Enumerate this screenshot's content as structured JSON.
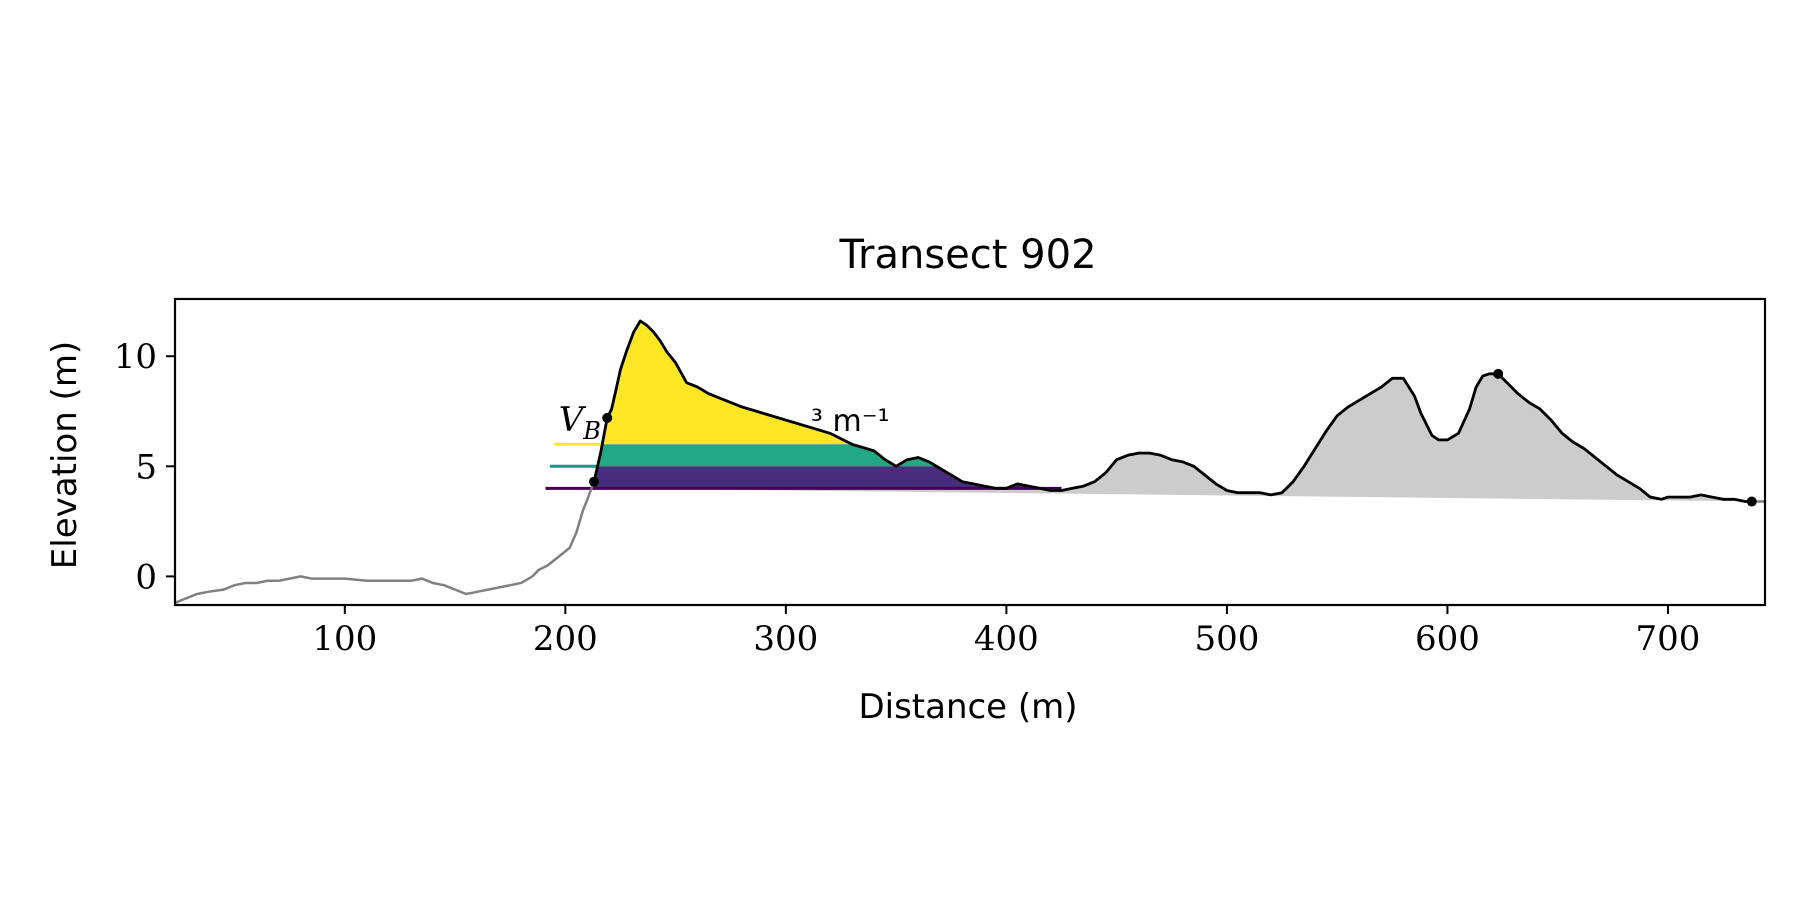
{
  "chart_data": {
    "type": "area",
    "title": "Transect 902",
    "xlabel": "Distance (m)",
    "ylabel": "Elevation (m)",
    "xlim": [
      23,
      744
    ],
    "ylim": [
      -1.3,
      12.6
    ],
    "xticks": [
      100,
      200,
      300,
      400,
      500,
      600,
      700
    ],
    "yticks": [
      0,
      5,
      10
    ],
    "grid": false,
    "annotation": {
      "text_main": "V",
      "text_sub": "B",
      "text_units": "³ m⁻¹",
      "x": 197,
      "y": 6.6
    },
    "colors": {
      "profile_full": "#808080",
      "profile_dune": "#000000",
      "fill_grey": "#cccccc",
      "band_top": "#fde725",
      "band_mid": "#21918c",
      "band_low": "#440154",
      "band_low_fill": "#472d7b",
      "band_mid_fill": "#22a884"
    },
    "levels": [
      {
        "name": "low",
        "elevation": 4.0,
        "line_start": 191,
        "fill_start": 213,
        "fill_end": 425
      },
      {
        "name": "mid",
        "elevation": 5.0,
        "line_start": 193,
        "fill_start": 214.5,
        "fill_end": 372
      },
      {
        "name": "top",
        "elevation": 6.0,
        "line_start": 195,
        "fill_start": 216,
        "fill_end": 345
      }
    ],
    "baseline": {
      "x": [
        213,
        744
      ],
      "y": [
        4.0,
        3.4
      ]
    },
    "markers": [
      {
        "x": 213,
        "y": 4.3
      },
      {
        "x": 219,
        "y": 7.2
      },
      {
        "x": 623,
        "y": 9.2
      },
      {
        "x": 738,
        "y": 3.4
      }
    ],
    "profile": {
      "x": [
        23,
        28,
        33,
        38,
        45,
        50,
        55,
        60,
        65,
        70,
        75,
        80,
        85,
        90,
        95,
        100,
        110,
        120,
        130,
        135,
        140,
        145,
        150,
        155,
        160,
        165,
        170,
        175,
        180,
        185,
        188,
        192,
        197,
        202,
        205,
        208,
        210,
        213,
        216,
        219,
        221,
        223,
        225,
        228,
        231,
        234,
        237,
        240,
        243,
        246,
        250,
        255,
        260,
        265,
        270,
        280,
        290,
        300,
        310,
        320,
        330,
        340,
        345,
        350,
        355,
        360,
        365,
        370,
        375,
        380,
        385,
        390,
        395,
        400,
        405,
        410,
        415,
        420,
        425,
        430,
        435,
        440,
        445,
        450,
        455,
        460,
        465,
        470,
        475,
        480,
        485,
        490,
        495,
        500,
        505,
        510,
        515,
        520,
        525,
        530,
        535,
        540,
        545,
        550,
        555,
        560,
        565,
        570,
        575,
        580,
        585,
        588,
        590,
        593,
        596,
        600,
        605,
        610,
        613,
        616,
        619,
        623,
        627,
        632,
        637,
        642,
        647,
        652,
        657,
        662,
        667,
        672,
        677,
        682,
        687,
        692,
        697,
        700,
        705,
        710,
        715,
        720,
        725,
        730,
        735,
        738,
        744
      ],
      "y": [
        -1.2,
        -1.0,
        -0.8,
        -0.7,
        -0.6,
        -0.4,
        -0.3,
        -0.3,
        -0.2,
        -0.2,
        -0.1,
        0.0,
        -0.1,
        -0.1,
        -0.1,
        -0.1,
        -0.2,
        -0.2,
        -0.2,
        -0.1,
        -0.3,
        -0.4,
        -0.6,
        -0.8,
        -0.7,
        -0.6,
        -0.5,
        -0.4,
        -0.3,
        0.0,
        0.3,
        0.5,
        0.9,
        1.3,
        2.0,
        3.0,
        3.5,
        4.3,
        5.6,
        7.2,
        7.6,
        8.5,
        9.4,
        10.3,
        11.1,
        11.6,
        11.4,
        11.1,
        10.7,
        10.2,
        9.7,
        8.8,
        8.6,
        8.3,
        8.1,
        7.7,
        7.4,
        7.1,
        6.8,
        6.5,
        6.0,
        5.7,
        5.3,
        5.0,
        5.3,
        5.4,
        5.2,
        4.9,
        4.6,
        4.3,
        4.2,
        4.1,
        4.0,
        4.0,
        4.2,
        4.1,
        4.0,
        3.9,
        3.9,
        4.0,
        4.1,
        4.3,
        4.7,
        5.3,
        5.5,
        5.6,
        5.6,
        5.5,
        5.3,
        5.2,
        5.0,
        4.6,
        4.2,
        3.9,
        3.8,
        3.8,
        3.8,
        3.7,
        3.8,
        4.3,
        5.0,
        5.8,
        6.6,
        7.3,
        7.7,
        8.0,
        8.3,
        8.6,
        9.0,
        9.0,
        8.2,
        7.4,
        7.0,
        6.4,
        6.2,
        6.2,
        6.5,
        7.6,
        8.6,
        9.1,
        9.2,
        9.2,
        8.8,
        8.3,
        7.9,
        7.6,
        7.1,
        6.5,
        6.1,
        5.8,
        5.4,
        5.0,
        4.6,
        4.3,
        4.0,
        3.6,
        3.5,
        3.6,
        3.6,
        3.6,
        3.7,
        3.6,
        3.5,
        3.5,
        3.4,
        3.4,
        3.4
      ]
    },
    "dune_segment": {
      "x_start": 213,
      "x_end": 738
    }
  }
}
